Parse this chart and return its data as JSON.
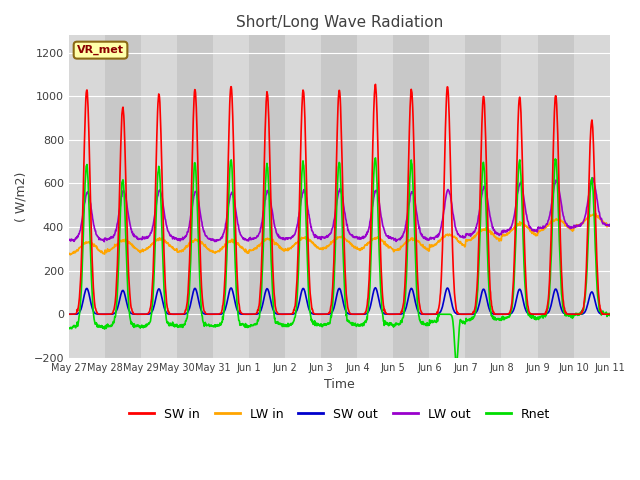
{
  "title": "Short/Long Wave Radiation",
  "xlabel": "Time",
  "ylabel": "( W/m2)",
  "ylim": [
    -200,
    1280
  ],
  "yticks": [
    -200,
    0,
    200,
    400,
    600,
    800,
    1000,
    1200
  ],
  "background_color": "#ffffff",
  "plot_bg_color_light": "#d8d8d8",
  "plot_bg_color_dark": "#c0c0c0",
  "grid_color": "#ffffff",
  "colors": {
    "SW_in": "#ff0000",
    "LW_in": "#ffa500",
    "SW_out": "#0000cc",
    "LW_out": "#9900cc",
    "Rnet": "#00dd00"
  },
  "legend_labels": [
    "SW in",
    "LW in",
    "SW out",
    "LW out",
    "Rnet"
  ],
  "site_label": "VR_met",
  "x_tick_labels": [
    "May 27",
    "May 28",
    "May 29",
    "May 30",
    "May 31",
    "Jun 1",
    "Jun 2",
    "Jun 3",
    "Jun 4",
    "Jun 5",
    "Jun 6",
    "Jun 7",
    "Jun 8",
    "Jun 9",
    "Jun 10",
    "Jun 11"
  ],
  "x_tick_positions": [
    0,
    1,
    2,
    3,
    4,
    5,
    6,
    7,
    8,
    9,
    10,
    11,
    12,
    13,
    14,
    15
  ],
  "linewidth": 1.2,
  "sw_peaks": [
    1030,
    950,
    1010,
    1030,
    1045,
    1020,
    1030,
    1030,
    1055,
    1030,
    1045,
    1000,
    1000,
    1005,
    890
  ],
  "lw_in_base": [
    290,
    300,
    305,
    300,
    295,
    305,
    310,
    315,
    310,
    305,
    325,
    350,
    375,
    395,
    415
  ],
  "lw_out_base": [
    350,
    355,
    358,
    353,
    348,
    355,
    358,
    362,
    358,
    352,
    360,
    375,
    390,
    405,
    415
  ]
}
